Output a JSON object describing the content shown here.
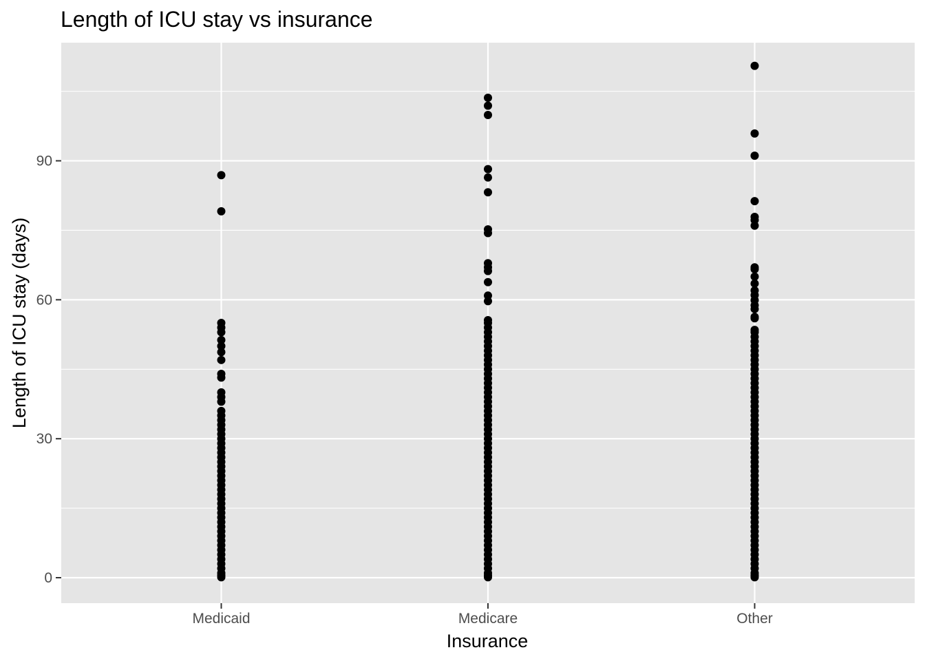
{
  "chart_data": {
    "type": "scatter",
    "title": "Length of ICU stay vs insurance",
    "xlabel": "Insurance",
    "ylabel": "Length of ICU stay (days)",
    "categories": [
      "Medicaid",
      "Medicare",
      "Other"
    ],
    "yticks": [
      0,
      30,
      60,
      90
    ],
    "ylim": [
      -5.5,
      115.5
    ],
    "grid": true,
    "legend": "none",
    "colors": {
      "panel": "#e5e5e5",
      "grid": "#ffffff",
      "point": "#000000",
      "tick": "#333333"
    },
    "series": [
      {
        "category": "Medicaid",
        "values": [
          86.9,
          79.1,
          55.0,
          54.0,
          53.0,
          51.3,
          50.0,
          48.7,
          47.0,
          44.0,
          43.2,
          40.0,
          39.0,
          38.0,
          36.0,
          35.0,
          34.0,
          33.0,
          32.0,
          31.0,
          30.0,
          29.0,
          28.0,
          27.0,
          26.0,
          25.0,
          24.0,
          23.0,
          22.0,
          21.0,
          20.0,
          19.0,
          18.0,
          17.0,
          16.0,
          15.0,
          14.0,
          13.0,
          12.0,
          11.0,
          10.0,
          9.0,
          8.0,
          7.0,
          6.0,
          5.0,
          4.0,
          3.0,
          2.0,
          1.0,
          0.5,
          0.1
        ]
      },
      {
        "category": "Medicare",
        "values": [
          103.6,
          101.9,
          99.9,
          88.2,
          86.4,
          83.2,
          75.2,
          74.4,
          67.9,
          67.0,
          66.2,
          63.8,
          60.9,
          59.7,
          55.6,
          55.0,
          54.0,
          53.0,
          52.0,
          51.0,
          50.0,
          49.0,
          48.0,
          47.0,
          46.0,
          45.0,
          44.0,
          43.0,
          42.0,
          41.0,
          40.0,
          39.0,
          38.0,
          37.0,
          36.0,
          35.0,
          34.0,
          33.0,
          32.0,
          31.0,
          30.0,
          29.0,
          28.0,
          27.0,
          26.0,
          25.0,
          24.0,
          23.0,
          22.0,
          21.0,
          20.0,
          19.0,
          18.0,
          17.0,
          16.0,
          15.0,
          14.0,
          13.0,
          12.0,
          11.0,
          10.0,
          9.0,
          8.0,
          7.0,
          6.0,
          5.0,
          4.0,
          3.0,
          2.0,
          1.0,
          0.5,
          0.1
        ]
      },
      {
        "category": "Other",
        "values": [
          110.5,
          95.9,
          91.1,
          81.3,
          77.9,
          77.2,
          76.0,
          67.0,
          66.6,
          65.0,
          63.5,
          62.0,
          61.0,
          59.9,
          58.8,
          58.0,
          56.3,
          56.0,
          53.5,
          53.0,
          52.0,
          51.0,
          50.0,
          49.0,
          48.0,
          47.0,
          46.0,
          45.0,
          44.0,
          43.0,
          42.0,
          41.0,
          40.0,
          39.0,
          38.0,
          37.0,
          36.0,
          35.0,
          34.0,
          33.0,
          32.0,
          31.0,
          30.0,
          29.0,
          28.0,
          27.0,
          26.0,
          25.0,
          24.0,
          23.0,
          22.0,
          21.0,
          20.0,
          19.0,
          18.0,
          17.0,
          16.0,
          15.0,
          14.0,
          13.0,
          12.0,
          11.0,
          10.0,
          9.0,
          8.0,
          7.0,
          6.0,
          5.0,
          4.0,
          3.0,
          2.0,
          1.0,
          0.5,
          0.1
        ]
      }
    ]
  }
}
